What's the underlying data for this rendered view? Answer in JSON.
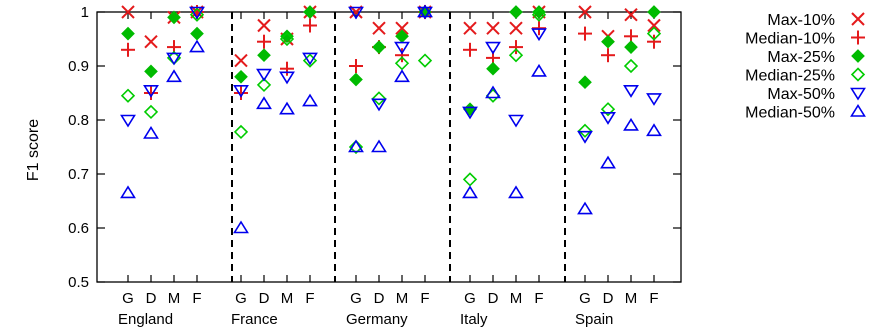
{
  "chart_data": {
    "type": "scatter",
    "ylabel": "F1 score",
    "ylim": [
      0.5,
      1.0
    ],
    "yticks": [
      "0.5",
      "0.6",
      "0.7",
      "0.8",
      "0.9",
      "1"
    ],
    "groups": [
      "England",
      "France",
      "Germany",
      "Italy",
      "Spain"
    ],
    "subcategories": [
      "G",
      "D",
      "M",
      "F"
    ],
    "grid": false,
    "legend_placement": "right",
    "group_separator": "dashed",
    "series": [
      {
        "name": "Max-10%",
        "marker": "x",
        "color": "#e41a1c",
        "values": [
          [
            1.0,
            0.945,
            0.99,
            1.0
          ],
          [
            0.91,
            0.975,
            0.95,
            1.0
          ],
          [
            1.0,
            0.97,
            0.97,
            1.0
          ],
          [
            0.97,
            0.97,
            0.97,
            1.0
          ],
          [
            1.0,
            0.955,
            0.995,
            0.975
          ]
        ]
      },
      {
        "name": "Median-10%",
        "marker": "+",
        "color": "#e41a1c",
        "values": [
          [
            0.93,
            0.85,
            0.935,
            1.0
          ],
          [
            0.85,
            0.945,
            0.895,
            0.975
          ],
          [
            0.9,
            0.935,
            0.92,
            1.0
          ],
          [
            0.93,
            0.915,
            0.935,
            0.97
          ],
          [
            0.96,
            0.92,
            0.955,
            0.945
          ]
        ]
      },
      {
        "name": "Max-25%",
        "marker": "diamond-filled",
        "color": "#00bb00",
        "values": [
          [
            0.96,
            0.89,
            0.99,
            0.96
          ],
          [
            0.88,
            0.92,
            0.955,
            1.0
          ],
          [
            0.875,
            0.935,
            0.955,
            1.0
          ],
          [
            0.82,
            0.895,
            1.0,
            1.0
          ],
          [
            0.87,
            0.945,
            0.935,
            1.0
          ]
        ]
      },
      {
        "name": "Median-25%",
        "marker": "diamond-open",
        "color": "#00cc00",
        "values": [
          [
            0.845,
            0.815,
            0.915,
            0.995
          ],
          [
            0.778,
            0.865,
            0.95,
            0.91
          ],
          [
            0.75,
            0.84,
            0.905,
            0.91
          ],
          [
            0.69,
            0.845,
            0.92,
            0.995
          ],
          [
            0.78,
            0.82,
            0.9,
            0.96
          ]
        ]
      },
      {
        "name": "Max-50%",
        "marker": "triangle-down",
        "color": "#0000ee",
        "values": [
          [
            0.8,
            0.855,
            0.915,
            1.0
          ],
          [
            0.855,
            0.885,
            0.88,
            0.915
          ],
          [
            1.0,
            0.83,
            0.935,
            1.0
          ],
          [
            0.815,
            0.935,
            0.8,
            0.96
          ],
          [
            0.77,
            0.805,
            0.855,
            0.84
          ]
        ]
      },
      {
        "name": "Median-50%",
        "marker": "triangle-up",
        "color": "#0000ee",
        "values": [
          [
            0.665,
            0.775,
            0.88,
            0.935
          ],
          [
            0.6,
            0.83,
            0.82,
            0.835
          ],
          [
            0.75,
            0.75,
            0.88,
            1.0
          ],
          [
            0.665,
            0.85,
            0.665,
            0.89
          ],
          [
            0.635,
            0.72,
            0.79,
            0.78
          ]
        ]
      }
    ]
  }
}
